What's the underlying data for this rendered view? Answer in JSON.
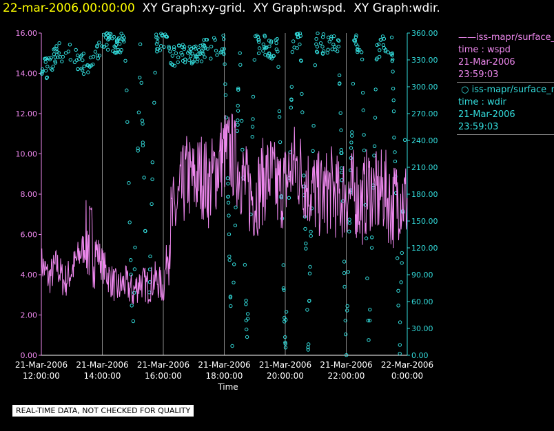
{
  "header": {
    "timestamp": "22-mar-2006,00:00:00",
    "graphs": [
      "XY Graph:xy-grid.",
      "XY Graph:wspd.",
      "XY Graph:wdir."
    ]
  },
  "legend": {
    "series": [
      {
        "line1": "iss-mapr/surface_m",
        "line2": "time : wspd",
        "line3": "21-Mar-2006",
        "line4": "23:59:03",
        "color": "#ee88ee",
        "marker": "line"
      },
      {
        "line1": "iss-mapr/surface_m",
        "line2": "time : wdir",
        "line3": "21-Mar-2006",
        "line4": "23:59:03",
        "color": "#33dddd",
        "marker": "circle"
      }
    ]
  },
  "disclaimer": "REAL-TIME DATA, NOT CHECKED FOR QUALITY",
  "chart_data": {
    "type": "line",
    "title": "",
    "xlabel": "Time",
    "xlim": [
      12,
      24
    ],
    "x_ticks": [
      {
        "t": 12,
        "label1": "21-Mar-2006",
        "label2": "12:00:00"
      },
      {
        "t": 14,
        "label1": "21-Mar-2006",
        "label2": "14:00:00"
      },
      {
        "t": 16,
        "label1": "21-Mar-2006",
        "label2": "16:00:00"
      },
      {
        "t": 18,
        "label1": "21-Mar-2006",
        "label2": "18:00:00"
      },
      {
        "t": 20,
        "label1": "21-Mar-2006",
        "label2": "20:00:00"
      },
      {
        "t": 22,
        "label1": "21-Mar-2006",
        "label2": "22:00:00"
      },
      {
        "t": 24,
        "label1": "22-Mar-2006",
        "label2": "0:00:00"
      }
    ],
    "y_left": {
      "lim": [
        0,
        16
      ],
      "ticks": [
        "0.00",
        "2.00",
        "4.00",
        "6.00",
        "8.00",
        "10.00",
        "12.00",
        "14.00",
        "16.00"
      ],
      "color": "#ee88ee"
    },
    "y_right": {
      "lim": [
        0,
        360
      ],
      "ticks": [
        "0.00",
        "30.00",
        "60.00",
        "90.00",
        "120.00",
        "150.00",
        "180.00",
        "210.00",
        "240.00",
        "270.00",
        "300.00",
        "330.00",
        "360.00"
      ],
      "color": "#33dddd"
    },
    "grid": "vertical",
    "series": [
      {
        "name": "iss-mapr/surface_m time : wspd",
        "axis": "left",
        "style": "line",
        "color": "#ee88ee",
        "x": [
          12.0,
          12.25,
          12.5,
          12.75,
          13.0,
          13.25,
          13.5,
          13.75,
          14.0,
          14.25,
          14.5,
          14.75,
          15.0,
          15.25,
          15.5,
          15.75,
          16.0,
          16.25,
          16.5,
          16.75,
          17.0,
          17.25,
          17.5,
          17.75,
          18.0,
          18.25,
          18.5,
          18.75,
          19.0,
          19.25,
          19.5,
          19.75,
          20.0,
          20.25,
          20.5,
          20.75,
          21.0,
          21.25,
          21.5,
          21.75,
          22.0,
          22.25,
          22.5,
          22.75,
          23.0,
          23.25,
          23.5,
          23.75,
          24.0
        ],
        "y": [
          4.6,
          3.8,
          4.5,
          3.6,
          4.2,
          5.0,
          5.6,
          5.5,
          4.5,
          3.8,
          3.3,
          3.6,
          3.1,
          3.7,
          3.4,
          3.8,
          3.3,
          6.5,
          7.5,
          8.9,
          8.6,
          9.0,
          8.4,
          9.3,
          10.1,
          10.0,
          9.2,
          8.2,
          7.8,
          8.6,
          9.0,
          8.2,
          8.5,
          9.5,
          9.1,
          8.4,
          8.0,
          7.9,
          8.3,
          7.7,
          8.0,
          8.1,
          7.5,
          8.4,
          7.9,
          8.2,
          7.3,
          8.0,
          7.6
        ],
        "min": 1.8,
        "max": 12.4
      },
      {
        "name": "iss-mapr/surface_m time : wdir",
        "axis": "right",
        "style": "scatter",
        "color": "#33dddd",
        "x": [
          12.0,
          12.25,
          12.5,
          12.75,
          13.0,
          13.25,
          13.5,
          13.75,
          14.0,
          14.25,
          14.5,
          14.75,
          15.0,
          15.25,
          15.5,
          15.75,
          16.0,
          16.25,
          16.5,
          16.75,
          17.0,
          17.25,
          17.5,
          17.75,
          18.0,
          18.25,
          18.5,
          18.75,
          19.0,
          19.25,
          19.5,
          19.75,
          20.0,
          20.25,
          20.5,
          20.75,
          21.0,
          21.25,
          21.5,
          21.75,
          22.0,
          22.25,
          22.5,
          22.75,
          23.0,
          23.25,
          23.5,
          23.75,
          24.0
        ],
        "y": [
          318,
          322,
          338,
          340,
          334,
          330,
          322,
          326,
          350,
          354,
          348,
          352,
          10,
          350,
          8,
          350,
          354,
          335,
          336,
          338,
          337,
          340,
          343,
          344,
          346,
          4,
          350,
          9,
          347,
          351,
          342,
          345,
          6,
          352,
          354,
          10,
          348,
          348,
          349,
          352,
          5,
          346,
          351,
          4,
          342,
          350,
          346,
          4,
          355
        ]
      }
    ]
  }
}
